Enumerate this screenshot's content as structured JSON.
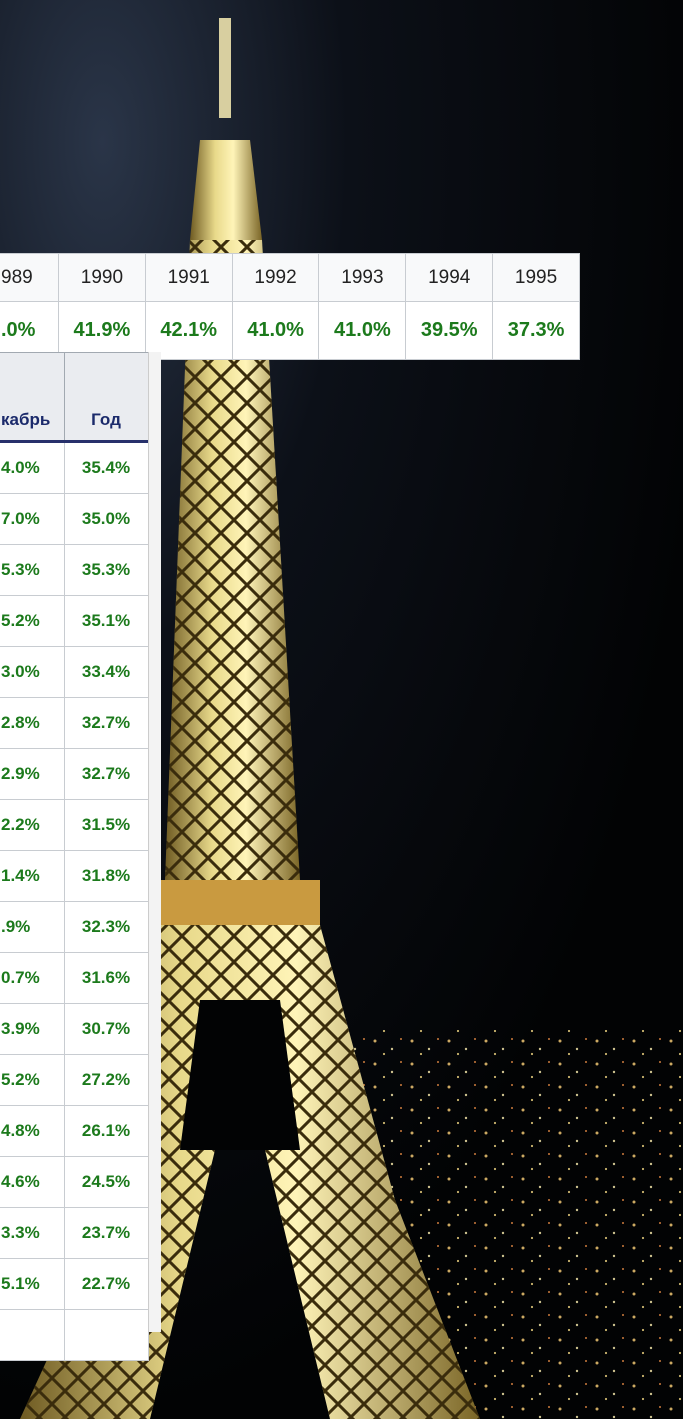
{
  "top_table": {
    "headers": [
      "989",
      "1990",
      "1991",
      "1992",
      "1993",
      "1994",
      "1995"
    ],
    "values": [
      ".0%",
      "41.9%",
      "42.1%",
      "41.0%",
      "41.0%",
      "39.5%",
      "37.3%"
    ]
  },
  "bottom_table": {
    "headers": [
      "кабрь",
      "Год"
    ],
    "rows": [
      [
        "4.0%",
        "35.4%"
      ],
      [
        "7.0%",
        "35.0%"
      ],
      [
        "5.3%",
        "35.3%"
      ],
      [
        "5.2%",
        "35.1%"
      ],
      [
        "3.0%",
        "33.4%"
      ],
      [
        "2.8%",
        "32.7%"
      ],
      [
        "2.9%",
        "32.7%"
      ],
      [
        "2.2%",
        "31.5%"
      ],
      [
        "1.4%",
        "31.8%"
      ],
      [
        ".9%",
        "32.3%"
      ],
      [
        "0.7%",
        "31.6%"
      ],
      [
        "3.9%",
        "30.7%"
      ],
      [
        "5.2%",
        "27.2%"
      ],
      [
        "4.8%",
        "26.1%"
      ],
      [
        "4.6%",
        "24.5%"
      ],
      [
        "3.3%",
        "23.7%"
      ],
      [
        "5.1%",
        "22.7%"
      ]
    ]
  }
}
